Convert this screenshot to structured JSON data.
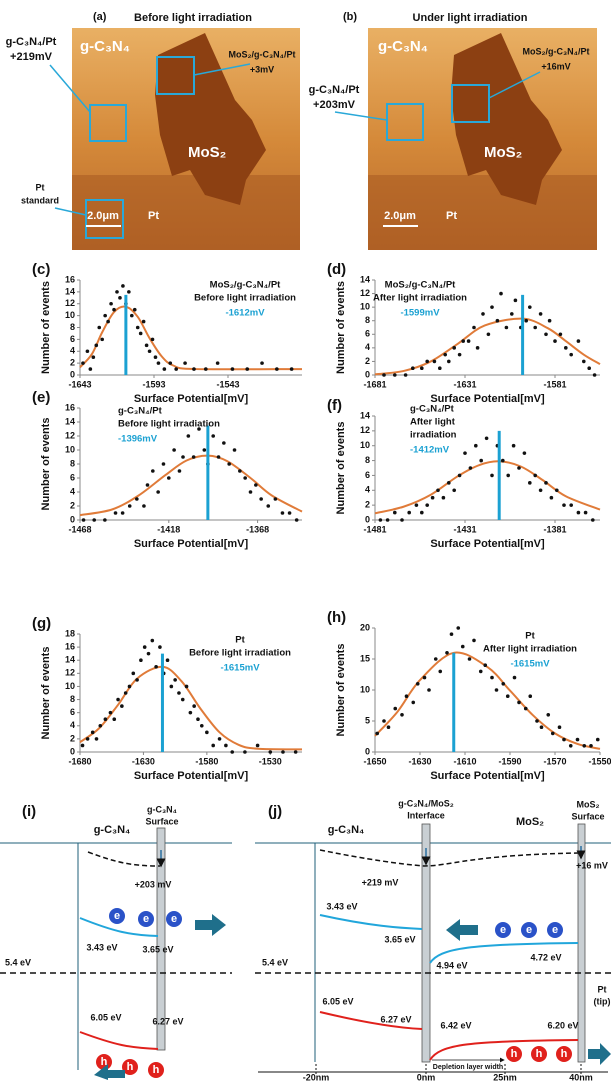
{
  "panel_a": {
    "label": "(a)",
    "title": "Before light irradiation",
    "substrate": "g-C₃N₄",
    "flake": "MoS₂",
    "metal": "Pt",
    "scale_bar": "2.0μm",
    "region_1": {
      "name": "g-C₃N₄/Pt",
      "potential": "+219mV"
    },
    "region_2": {
      "name": "MoS₂/g-C₃N₄/Pt",
      "potential": "+3mV"
    },
    "region_3": {
      "lines": [
        "Pt",
        "standard"
      ]
    }
  },
  "panel_b": {
    "label": "(b)",
    "title": "Under light irradiation",
    "substrate": "g-C₃N₄",
    "flake": "MoS₂",
    "metal": "Pt",
    "scale_bar": "2.0μm",
    "region_1": {
      "name": "g-C₃N₄/Pt",
      "potential": "+203mV"
    },
    "region_2": {
      "name": "MoS₂/g-C₃N₄/Pt",
      "potential": "+16mV"
    }
  },
  "chart_data": [
    {
      "type": "scatter",
      "label": "(c)",
      "annotations": [
        "MoS₂/g-C₃N₄/Pt",
        "Before light irradiation"
      ],
      "xlabel": "Surface Potential[mV]",
      "ylabel": "Number of events",
      "color": "#111111",
      "xlim": [
        -1643,
        -1493
      ],
      "xticks": [
        -1643,
        -1593,
        -1543
      ],
      "ylim": [
        0,
        16
      ],
      "yticks": [
        0,
        2,
        4,
        6,
        8,
        10,
        12,
        14,
        16
      ],
      "x": [
        -1641,
        -1638,
        -1636,
        -1634,
        -1632,
        -1630,
        -1628,
        -1626,
        -1624,
        -1622,
        -1620,
        -1618,
        -1616,
        -1614,
        -1612,
        -1610,
        -1608,
        -1606,
        -1604,
        -1602,
        -1600,
        -1598,
        -1596,
        -1594,
        -1592,
        -1590,
        -1586,
        -1582,
        -1578,
        -1572,
        -1566,
        -1558,
        -1550,
        -1540,
        -1530,
        -1520,
        -1510,
        -1500
      ],
      "values": [
        2,
        4,
        1,
        3,
        5,
        8,
        6,
        10,
        9,
        12,
        11,
        14,
        13,
        15,
        12,
        14,
        10,
        11,
        8,
        7,
        9,
        5,
        4,
        6,
        3,
        2,
        1,
        2,
        1,
        2,
        1,
        1,
        2,
        1,
        1,
        2,
        1,
        1
      ],
      "fit": {
        "color": "#e07b39",
        "x": [
          -1643,
          -1635,
          -1628,
          -1620,
          -1612,
          -1604,
          -1596,
          -1588,
          -1580,
          -1565,
          -1493
        ],
        "values": [
          1.3,
          3.5,
          7.2,
          10.6,
          11.5,
          9.8,
          6.2,
          3.2,
          1.6,
          1.0,
          1.0
        ]
      },
      "marker": {
        "value": -1612,
        "label": "-1612mV",
        "top": 13.5,
        "color": "#1ba1d2"
      }
    },
    {
      "type": "scatter",
      "label": "(d)",
      "annotations": [
        "MoS₂/g-C₃N₄/Pt",
        "After light irradiation"
      ],
      "xlabel": "Surface Potential[mV]",
      "ylabel": "Number of events",
      "color": "#111111",
      "xlim": [
        -1681,
        -1556
      ],
      "xticks": [
        -1681,
        -1631,
        -1581
      ],
      "ylim": [
        0,
        14
      ],
      "yticks": [
        0,
        2,
        4,
        6,
        8,
        10,
        12,
        14
      ],
      "x": [
        -1676,
        -1670,
        -1664,
        -1660,
        -1655,
        -1652,
        -1648,
        -1645,
        -1642,
        -1640,
        -1637,
        -1634,
        -1632,
        -1629,
        -1626,
        -1624,
        -1621,
        -1618,
        -1616,
        -1613,
        -1611,
        -1608,
        -1605,
        -1603,
        -1600,
        -1597,
        -1595,
        -1592,
        -1589,
        -1586,
        -1584,
        -1581,
        -1578,
        -1575,
        -1572,
        -1568,
        -1565,
        -1562,
        -1559
      ],
      "values": [
        0,
        0,
        0,
        1,
        1,
        2,
        2,
        1,
        3,
        2,
        4,
        3,
        5,
        5,
        7,
        4,
        9,
        6,
        10,
        8,
        12,
        7,
        9,
        11,
        7,
        8,
        10,
        7,
        9,
        6,
        8,
        5,
        6,
        4,
        3,
        5,
        2,
        1,
        0
      ],
      "fit": {
        "color": "#e07b39",
        "x": [
          -1681,
          -1665,
          -1650,
          -1635,
          -1620,
          -1599,
          -1585,
          -1575,
          -1565,
          -1556
        ],
        "values": [
          0.1,
          0.6,
          2,
          4.6,
          7.3,
          8.3,
          6.9,
          5,
          3,
          1.6
        ]
      },
      "marker": {
        "value": -1599,
        "label": "-1599mV",
        "top": 11.8,
        "color": "#1ba1d2"
      }
    },
    {
      "type": "scatter",
      "label": "(e)",
      "annotations": [
        "g-C₃N₄/Pt",
        "Before light irradiation"
      ],
      "xlabel": "Surface Potential[mV]",
      "ylabel": "Number of events",
      "color": "#111111",
      "xlim": [
        -1468,
        -1343
      ],
      "xticks": [
        -1468,
        -1418,
        -1368
      ],
      "ylim": [
        0,
        16
      ],
      "yticks": [
        0,
        2,
        4,
        6,
        8,
        10,
        12,
        14,
        16
      ],
      "x": [
        -1466,
        -1460,
        -1454,
        -1448,
        -1444,
        -1440,
        -1436,
        -1432,
        -1430,
        -1427,
        -1424,
        -1421,
        -1418,
        -1415,
        -1412,
        -1410,
        -1407,
        -1404,
        -1401,
        -1398,
        -1396,
        -1393,
        -1390,
        -1387,
        -1384,
        -1381,
        -1378,
        -1375,
        -1372,
        -1369,
        -1366,
        -1362,
        -1358,
        -1354,
        -1350,
        -1346
      ],
      "values": [
        0,
        0,
        0,
        1,
        1,
        2,
        3,
        2,
        5,
        7,
        4,
        8,
        6,
        10,
        7,
        9,
        12,
        9,
        13,
        10,
        8,
        12,
        9,
        11,
        8,
        10,
        7,
        6,
        4,
        5,
        3,
        2,
        3,
        1,
        1,
        0
      ],
      "fit": {
        "color": "#e07b39",
        "x": [
          -1468,
          -1450,
          -1435,
          -1420,
          -1408,
          -1396,
          -1385,
          -1372,
          -1360,
          -1343
        ],
        "values": [
          0.7,
          1.5,
          3.5,
          6.4,
          8.5,
          9.2,
          8.4,
          6,
          3.5,
          1.2
        ]
      },
      "marker": {
        "value": -1396,
        "label": "-1396mV",
        "top": 13.5,
        "color": "#1ba1d2"
      }
    },
    {
      "type": "scatter",
      "label": "(f)",
      "annotations": [
        "g-C₃N₄/Pt",
        "After light",
        "irradiation"
      ],
      "xlabel": "Surface Potential[mV]",
      "ylabel": "Number of events",
      "color": "#111111",
      "xlim": [
        -1481,
        -1356
      ],
      "xticks": [
        -1481,
        -1431,
        -1381
      ],
      "ylim": [
        0,
        14
      ],
      "yticks": [
        0,
        2,
        4,
        6,
        8,
        10,
        12,
        14
      ],
      "x": [
        -1478,
        -1474,
        -1470,
        -1466,
        -1462,
        -1458,
        -1455,
        -1452,
        -1449,
        -1446,
        -1443,
        -1440,
        -1437,
        -1434,
        -1431,
        -1428,
        -1425,
        -1422,
        -1419,
        -1416,
        -1413,
        -1410,
        -1407,
        -1404,
        -1401,
        -1398,
        -1395,
        -1392,
        -1389,
        -1386,
        -1383,
        -1380,
        -1376,
        -1372,
        -1368,
        -1364,
        -1360
      ],
      "values": [
        0,
        0,
        1,
        0,
        1,
        2,
        1,
        2,
        3,
        4,
        3,
        5,
        4,
        6,
        9,
        7,
        10,
        8,
        11,
        6,
        10,
        8,
        6,
        10,
        7,
        9,
        5,
        6,
        4,
        5,
        3,
        4,
        2,
        2,
        1,
        1,
        0
      ],
      "fit": {
        "color": "#e07b39",
        "x": [
          -1481,
          -1465,
          -1450,
          -1435,
          -1423,
          -1412,
          -1400,
          -1388,
          -1375,
          -1356
        ],
        "values": [
          0.9,
          1.8,
          3.4,
          5.9,
          7.4,
          7.9,
          7.2,
          5.4,
          3.2,
          1.4
        ]
      },
      "marker": {
        "value": -1412,
        "label": "-1412mV",
        "top": 12,
        "color": "#1ba1d2"
      }
    },
    {
      "type": "scatter",
      "label": "(g)",
      "annotations": [
        "Pt",
        "Before light irradiation"
      ],
      "xlabel": "Surface Potential[mV]",
      "ylabel": "Number of events",
      "color": "#111111",
      "xlim": [
        -1680,
        -1505
      ],
      "xticks": [
        -1680,
        -1630,
        -1580,
        -1530
      ],
      "ylim": [
        0,
        18
      ],
      "yticks": [
        0,
        2,
        4,
        6,
        8,
        10,
        12,
        14,
        16,
        18
      ],
      "x": [
        -1678,
        -1674,
        -1670,
        -1667,
        -1664,
        -1660,
        -1656,
        -1653,
        -1650,
        -1647,
        -1644,
        -1641,
        -1638,
        -1635,
        -1632,
        -1629,
        -1626,
        -1623,
        -1620,
        -1617,
        -1614,
        -1611,
        -1608,
        -1605,
        -1602,
        -1599,
        -1596,
        -1593,
        -1590,
        -1587,
        -1584,
        -1580,
        -1575,
        -1570,
        -1565,
        -1560,
        -1550,
        -1540,
        -1530,
        -1520,
        -1510
      ],
      "values": [
        1,
        2,
        3,
        2,
        4,
        5,
        6,
        5,
        8,
        7,
        9,
        10,
        12,
        11,
        14,
        16,
        15,
        17,
        13,
        16,
        12,
        14,
        10,
        11,
        9,
        8,
        10,
        6,
        7,
        5,
        4,
        3,
        1,
        2,
        1,
        0,
        0,
        1,
        0,
        0,
        0
      ],
      "fit": {
        "color": "#e07b39",
        "x": [
          -1680,
          -1665,
          -1650,
          -1635,
          -1615,
          -1600,
          -1585,
          -1570,
          -1555,
          -1540,
          -1505
        ],
        "values": [
          1.5,
          3.6,
          7.2,
          11.2,
          13,
          10.8,
          6.6,
          3,
          1.1,
          0.5,
          0.4
        ]
      },
      "marker": {
        "value": -1615,
        "label": "-1615mV",
        "top": 15,
        "color": "#1ba1d2"
      }
    },
    {
      "type": "scatter",
      "label": "(h)",
      "annotations": [
        "Pt",
        "After light irradiation"
      ],
      "xlabel": "Surface Potential[mV]",
      "ylabel": "Number of events",
      "color": "#111111",
      "xlim": [
        -1650,
        -1550
      ],
      "xticks": [
        -1650,
        -1630,
        -1610,
        -1590,
        -1570,
        -1550
      ],
      "ylim": [
        0,
        20
      ],
      "yticks": [
        0,
        5,
        10,
        15,
        20
      ],
      "x": [
        -1649,
        -1646,
        -1644,
        -1641,
        -1638,
        -1636,
        -1633,
        -1631,
        -1628,
        -1626,
        -1623,
        -1621,
        -1618,
        -1616,
        -1613,
        -1611,
        -1608,
        -1606,
        -1603,
        -1601,
        -1598,
        -1596,
        -1593,
        -1591,
        -1588,
        -1586,
        -1583,
        -1581,
        -1578,
        -1576,
        -1573,
        -1571,
        -1568,
        -1566,
        -1563,
        -1560,
        -1557,
        -1554,
        -1551
      ],
      "values": [
        3,
        5,
        4,
        7,
        6,
        9,
        8,
        11,
        12,
        10,
        15,
        13,
        16,
        19,
        20,
        17,
        15,
        18,
        13,
        14,
        12,
        10,
        11,
        9,
        12,
        8,
        7,
        9,
        5,
        4,
        6,
        3,
        4,
        2,
        1,
        2,
        1,
        1,
        2
      ],
      "fit": {
        "color": "#e07b39",
        "x": [
          -1650,
          -1640,
          -1630,
          -1615,
          -1600,
          -1590,
          -1580,
          -1570,
          -1560,
          -1550
        ],
        "values": [
          2.6,
          6.5,
          11.6,
          16,
          13.7,
          9.9,
          6,
          3,
          1.3,
          0.5
        ]
      },
      "marker": {
        "value": -1615,
        "label": "-1615mV",
        "top": 16,
        "color": "#1ba1d2"
      }
    }
  ],
  "panel_i": {
    "label": "(i)",
    "material": "g-C₃N₄",
    "surface": [
      "g-C₃N₄",
      "Surface"
    ],
    "band_bending": "+203 mV",
    "cb_left": "3.43 eV",
    "cb_surface": "3.65 eV",
    "fermi": "5.4 eV",
    "vb_left": "6.05 eV",
    "vb_surface": "6.27 eV",
    "electron": "e",
    "hole": "h"
  },
  "panel_j": {
    "label": "(j)",
    "material_left": "g-C₃N₄",
    "interface": [
      "g-C₃N₄/MoS₂",
      "Interface"
    ],
    "material_right": "MoS₂",
    "surface": [
      "MoS₂",
      "Surface"
    ],
    "band_bending_left": "+219 mV",
    "band_bending_right": "+16 mV",
    "cb_left": "3.43 eV",
    "cb_interface_left": "3.65 eV",
    "cb_interface_right": "4.94 eV",
    "cb_surface": "4.72 eV",
    "fermi": "5.4 eV",
    "vb_left": "6.05 eV",
    "vb_interface_left": "6.27 eV",
    "vb_interface_right": "6.42 eV",
    "vb_surface": "6.20 eV",
    "tip": [
      "Pt",
      "(tip)"
    ],
    "depletion": "Depletion layer width",
    "positions": [
      "-20nm",
      "0nm",
      "25nm",
      "40nm"
    ],
    "electron": "e",
    "hole": "h"
  }
}
